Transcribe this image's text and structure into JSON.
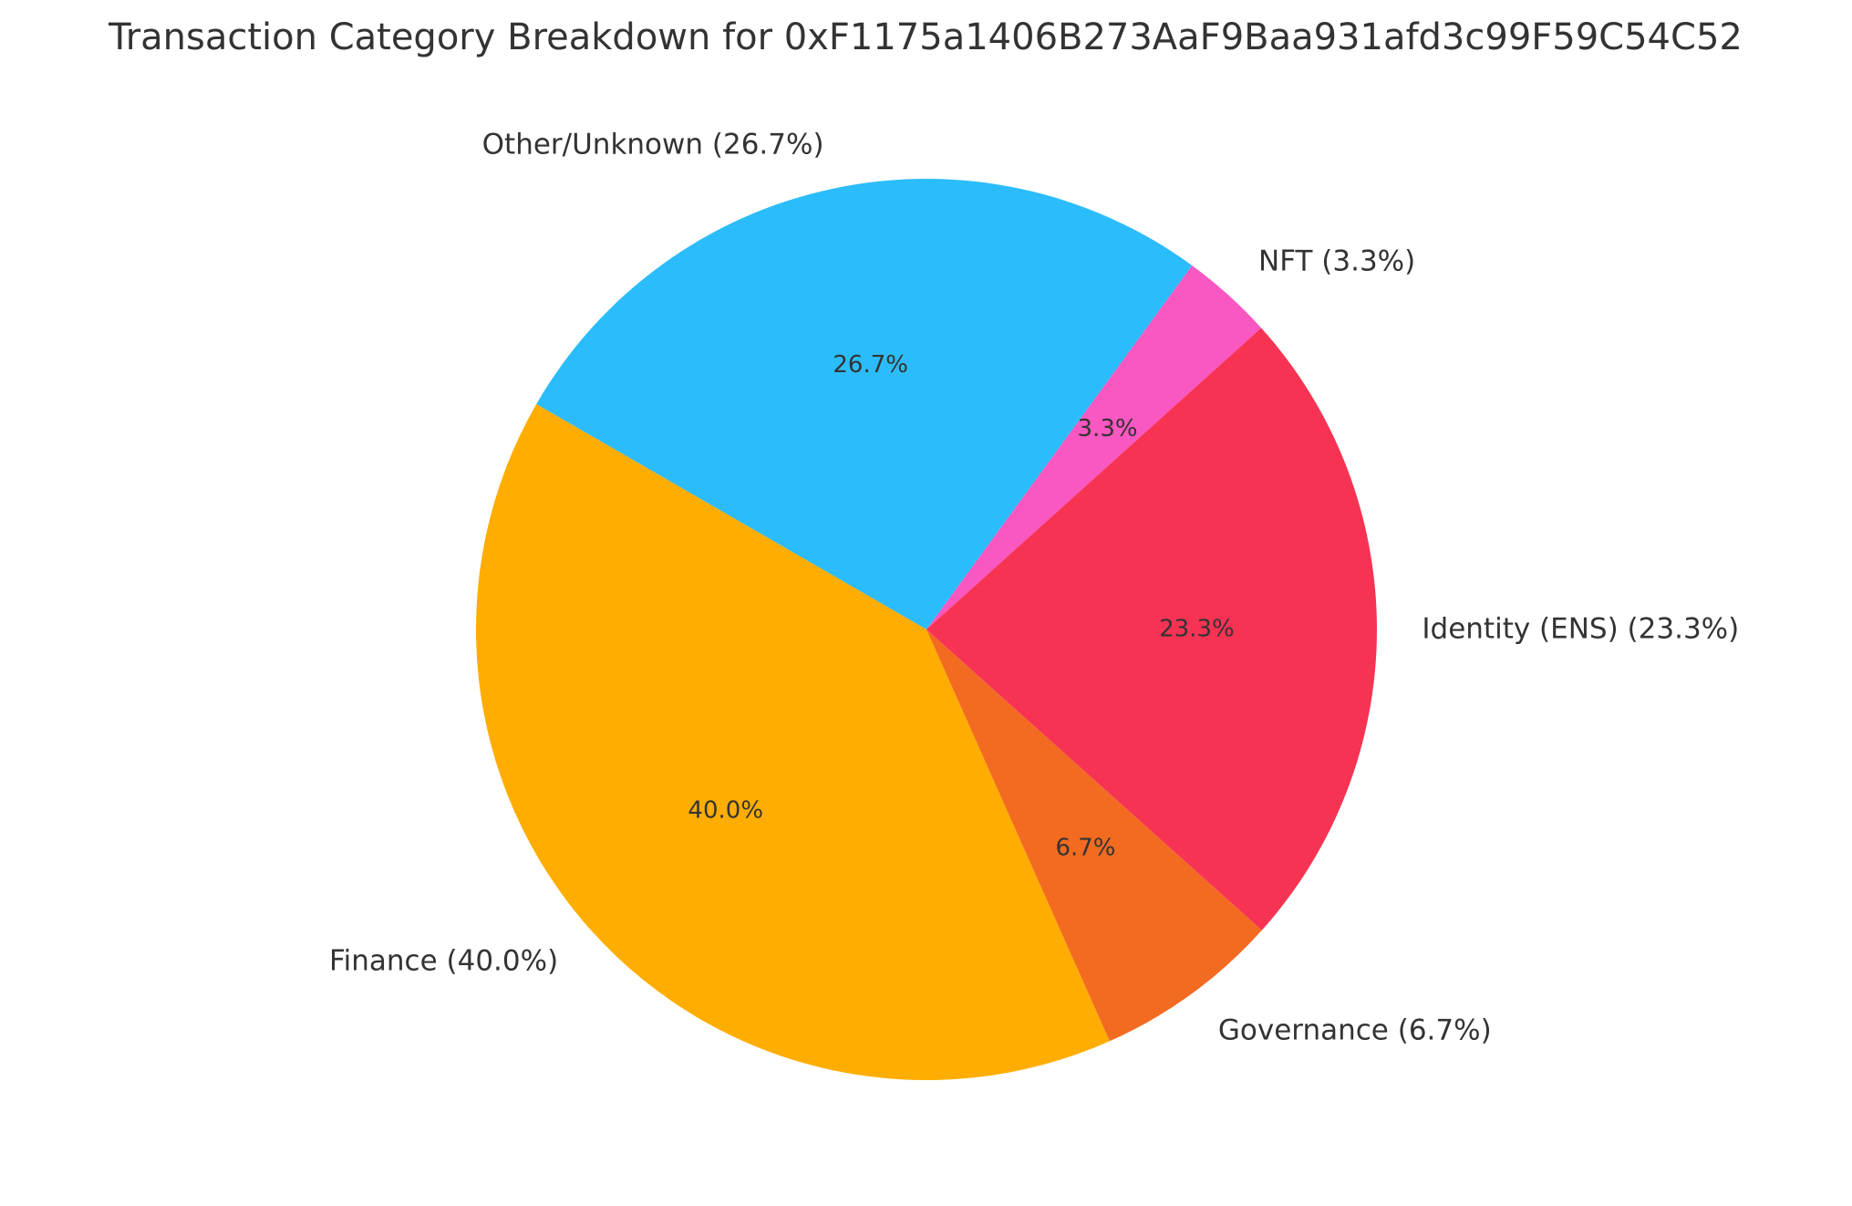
{
  "chart_data": {
    "type": "pie",
    "title": "Transaction Category Breakdown for 0xF1175a1406B273AaF9Baa931afd3c99F59C54C52",
    "start_angle_deg": 42,
    "direction": "counterclockwise",
    "slices": [
      {
        "name": "NFT",
        "value": 3.3,
        "pct_label": "3.3%",
        "label": "NFT (3.3%)",
        "color": "#f957c1"
      },
      {
        "name": "Other/Unknown",
        "value": 26.7,
        "pct_label": "26.7%",
        "label": "Other/Unknown (26.7%)",
        "color": "#2bbcfc"
      },
      {
        "name": "Finance",
        "value": 40.0,
        "pct_label": "40.0%",
        "label": "Finance (40.0%)",
        "color": "#ffad00"
      },
      {
        "name": "Governance",
        "value": 6.7,
        "pct_label": "6.7%",
        "label": "Governance (6.7%)",
        "color": "#f26b21"
      },
      {
        "name": "Identity (ENS)",
        "value": 23.3,
        "pct_label": "23.3%",
        "label": "Identity (ENS) (23.3%)",
        "color": "#f73354"
      }
    ]
  }
}
